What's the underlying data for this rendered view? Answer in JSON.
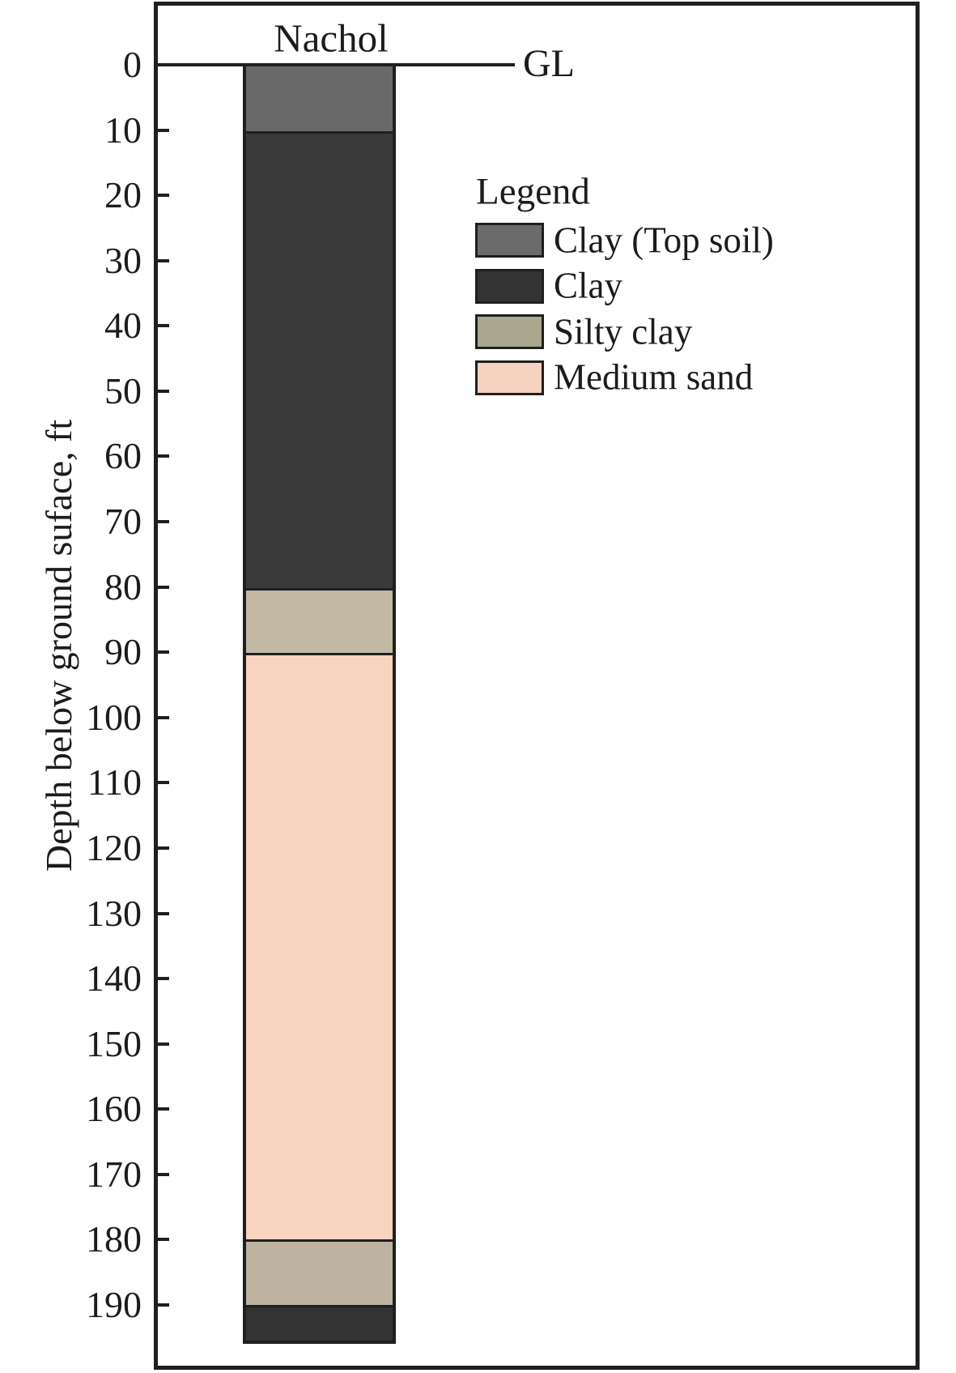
{
  "figure": {
    "title": "Nachol",
    "ground_level_label": "GL",
    "y_axis_label": "Depth below ground suface, ft",
    "legend_title": "Legend"
  },
  "chart_data": {
    "type": "bar",
    "subtype": "lithology-borehole-log",
    "title": "Nachol",
    "ylabel": "Depth below ground suface, ft",
    "ylim": [
      0,
      195.5
    ],
    "y_tick_interval": 10,
    "y_ticks": [
      0,
      10,
      20,
      30,
      40,
      50,
      60,
      70,
      80,
      90,
      100,
      110,
      120,
      130,
      140,
      150,
      160,
      170,
      180,
      190
    ],
    "grid": false,
    "ground_level_label": "GL",
    "ground_level_depth_ft": 0,
    "layers": [
      {
        "material": "Clay (Top soil)",
        "from_ft": 0,
        "to_ft": 10,
        "color": "#696969"
      },
      {
        "material": "Clay",
        "from_ft": 10,
        "to_ft": 80,
        "color": "#3a3a3a"
      },
      {
        "material": "Silty clay",
        "from_ft": 80,
        "to_ft": 90,
        "color": "#c3b8a3"
      },
      {
        "material": "Medium sand",
        "from_ft": 90,
        "to_ft": 180,
        "color": "#f8d3c0"
      },
      {
        "material": "Silty clay",
        "from_ft": 180,
        "to_ft": 190,
        "color": "#bdb3a0"
      },
      {
        "material": "Clay",
        "from_ft": 190,
        "to_ft": 195.5,
        "color": "#333333"
      }
    ],
    "legend_position": "upper right",
    "legend": {
      "title": "Legend",
      "entries": [
        {
          "label": "Clay (Top soil)",
          "color": "#6b6b6b"
        },
        {
          "label": "Clay",
          "color": "#333333"
        },
        {
          "label": "Silty clay",
          "color": "#a9a88f"
        },
        {
          "label": "Medium sand",
          "color": "#f6d2c0"
        }
      ]
    }
  }
}
